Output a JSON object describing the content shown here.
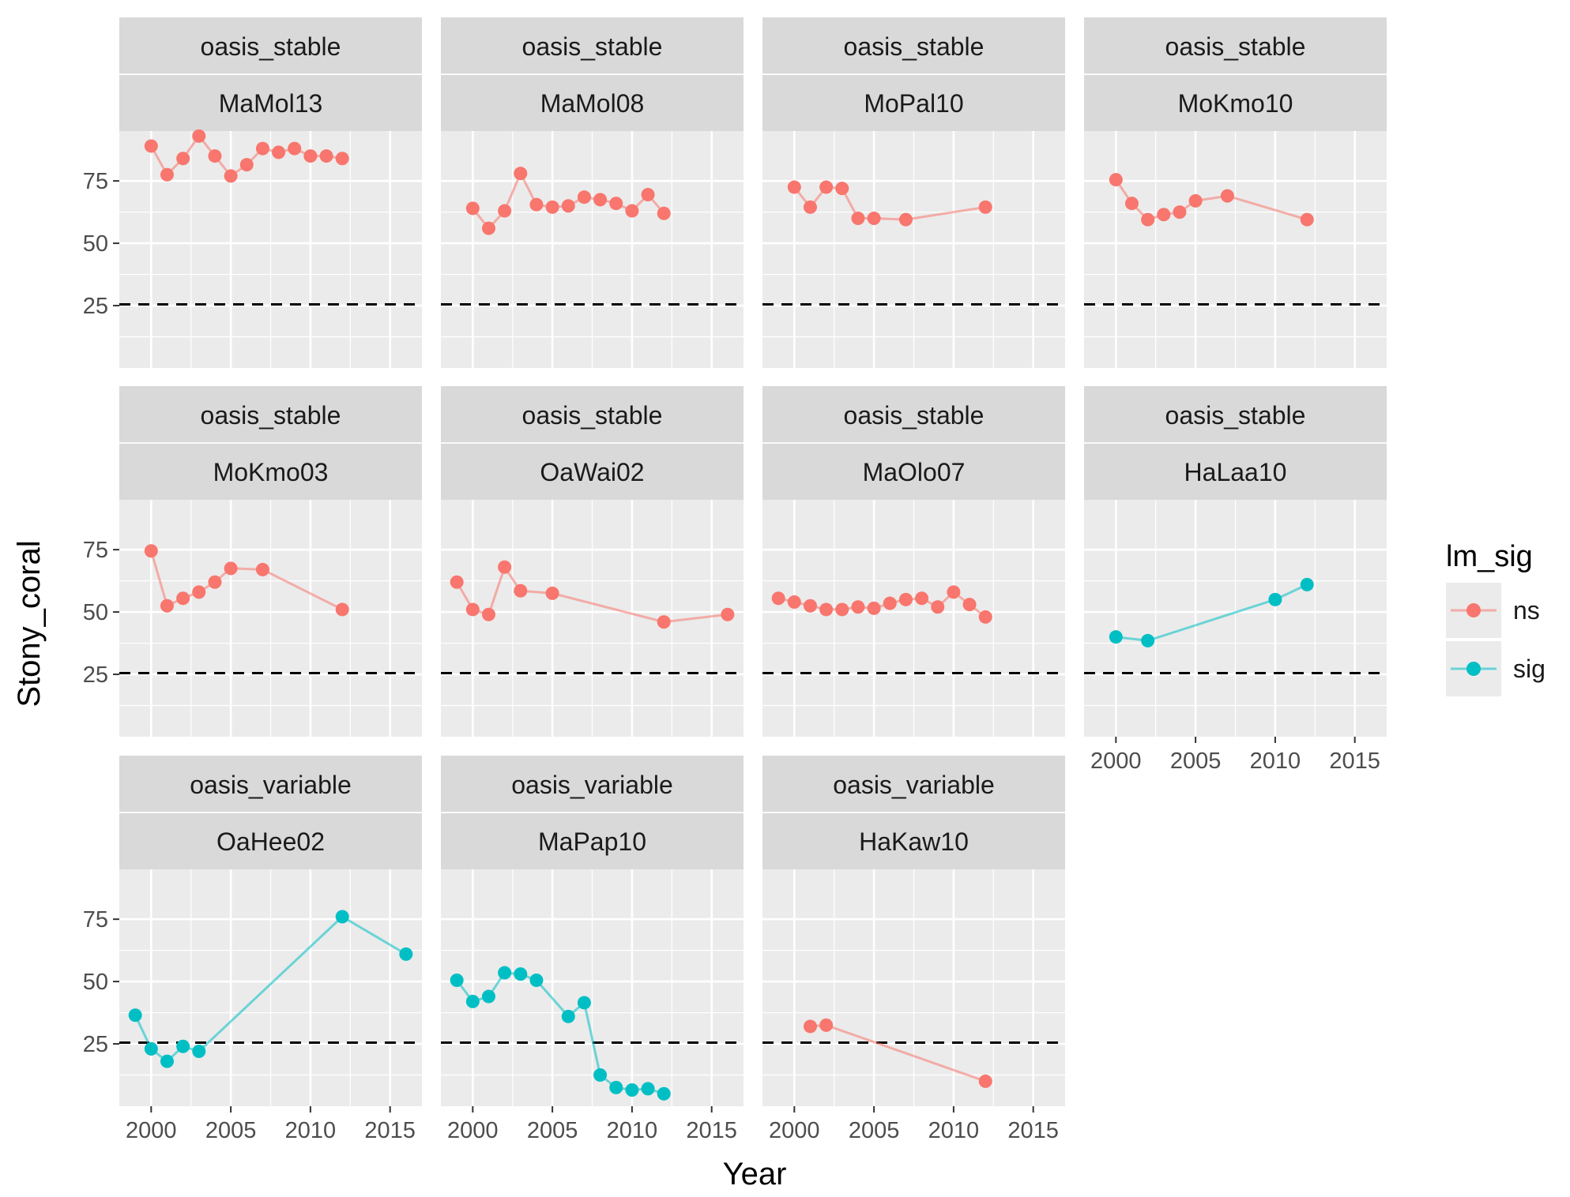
{
  "chart_data": {
    "type": "line",
    "xlabel": "Year",
    "ylabel": "Stony_coral",
    "xlim": [
      1998,
      2017
    ],
    "ylim": [
      0,
      95
    ],
    "xticks": [
      2000,
      2005,
      2010,
      2015
    ],
    "yticks": [
      25,
      50,
      75
    ],
    "reference_line": {
      "y": 25.5,
      "style": "dashed",
      "color": "#000000"
    },
    "grid": true,
    "legend": {
      "title": "lm_sig",
      "position": "right",
      "entries": [
        {
          "label": "ns",
          "color": "#F8766D"
        },
        {
          "label": "sig",
          "color": "#00BFC4"
        }
      ]
    },
    "panels": [
      {
        "group": "oasis_stable",
        "site": "MaMol13",
        "lm_sig": "ns",
        "x": [
          2000,
          2001,
          2002,
          2003,
          2004,
          2005,
          2006,
          2007,
          2008,
          2009,
          2010,
          2011,
          2012
        ],
        "y": [
          89,
          77.5,
          84,
          93,
          85,
          77,
          81.5,
          88,
          86.5,
          88,
          85,
          85,
          84
        ]
      },
      {
        "group": "oasis_stable",
        "site": "MaMol08",
        "lm_sig": "ns",
        "x": [
          2000,
          2001,
          2002,
          2003,
          2004,
          2005,
          2006,
          2007,
          2008,
          2009,
          2010,
          2011,
          2012
        ],
        "y": [
          64,
          56,
          63,
          78,
          65.5,
          64.5,
          65,
          68.5,
          67.5,
          66,
          63,
          69.5,
          62
        ]
      },
      {
        "group": "oasis_stable",
        "site": "MoPal10",
        "lm_sig": "ns",
        "x": [
          2000,
          2001,
          2002,
          2003,
          2004,
          2005,
          2007,
          2012
        ],
        "y": [
          72.5,
          64.5,
          72.5,
          72,
          60,
          60,
          59.5,
          64.5
        ]
      },
      {
        "group": "oasis_stable",
        "site": "MoKmo10",
        "lm_sig": "ns",
        "x": [
          2000,
          2001,
          2002,
          2003,
          2004,
          2005,
          2007,
          2012
        ],
        "y": [
          75.5,
          66,
          59.5,
          61.5,
          62.5,
          67,
          69,
          59.5
        ]
      },
      {
        "group": "oasis_stable",
        "site": "MoKmo03",
        "lm_sig": "ns",
        "x": [
          2000,
          2001,
          2002,
          2003,
          2004,
          2005,
          2007,
          2012
        ],
        "y": [
          74.5,
          52.5,
          55.5,
          58,
          62,
          67.5,
          67,
          51
        ]
      },
      {
        "group": "oasis_stable",
        "site": "OaWai02",
        "lm_sig": "ns",
        "x": [
          1999,
          2000,
          2001,
          2002,
          2003,
          2005,
          2012,
          2016
        ],
        "y": [
          62,
          51,
          49,
          68,
          58.5,
          57.5,
          46,
          49
        ]
      },
      {
        "group": "oasis_stable",
        "site": "MaOlo07",
        "lm_sig": "ns",
        "x": [
          1999,
          2000,
          2001,
          2002,
          2003,
          2004,
          2005,
          2006,
          2007,
          2008,
          2009,
          2010,
          2011,
          2012
        ],
        "y": [
          55.5,
          54,
          52.5,
          51,
          51,
          52,
          51.5,
          53.5,
          55,
          55.5,
          52,
          58,
          53,
          48
        ]
      },
      {
        "group": "oasis_stable",
        "site": "HaLaa10",
        "lm_sig": "sig",
        "x": [
          2000,
          2002,
          2010,
          2012
        ],
        "y": [
          40,
          38.5,
          55,
          61
        ]
      },
      {
        "group": "oasis_variable",
        "site": "OaHee02",
        "lm_sig": "sig",
        "x": [
          1999,
          2000,
          2001,
          2002,
          2003,
          2012,
          2016
        ],
        "y": [
          36.5,
          23,
          18,
          24,
          22,
          76,
          61
        ]
      },
      {
        "group": "oasis_variable",
        "site": "MaPap10",
        "lm_sig": "sig",
        "x": [
          1999,
          2000,
          2001,
          2002,
          2003,
          2004,
          2006,
          2007,
          2008,
          2009,
          2010,
          2011,
          2012
        ],
        "y": [
          50.5,
          42,
          44,
          53.5,
          53,
          50.5,
          36,
          41.5,
          12.5,
          7.5,
          6.5,
          7,
          5
        ]
      },
      {
        "group": "oasis_variable",
        "site": "HaKaw10",
        "lm_sig": "ns",
        "x": [
          2001,
          2002,
          2012
        ],
        "y": [
          32,
          32.5,
          10
        ]
      }
    ]
  }
}
